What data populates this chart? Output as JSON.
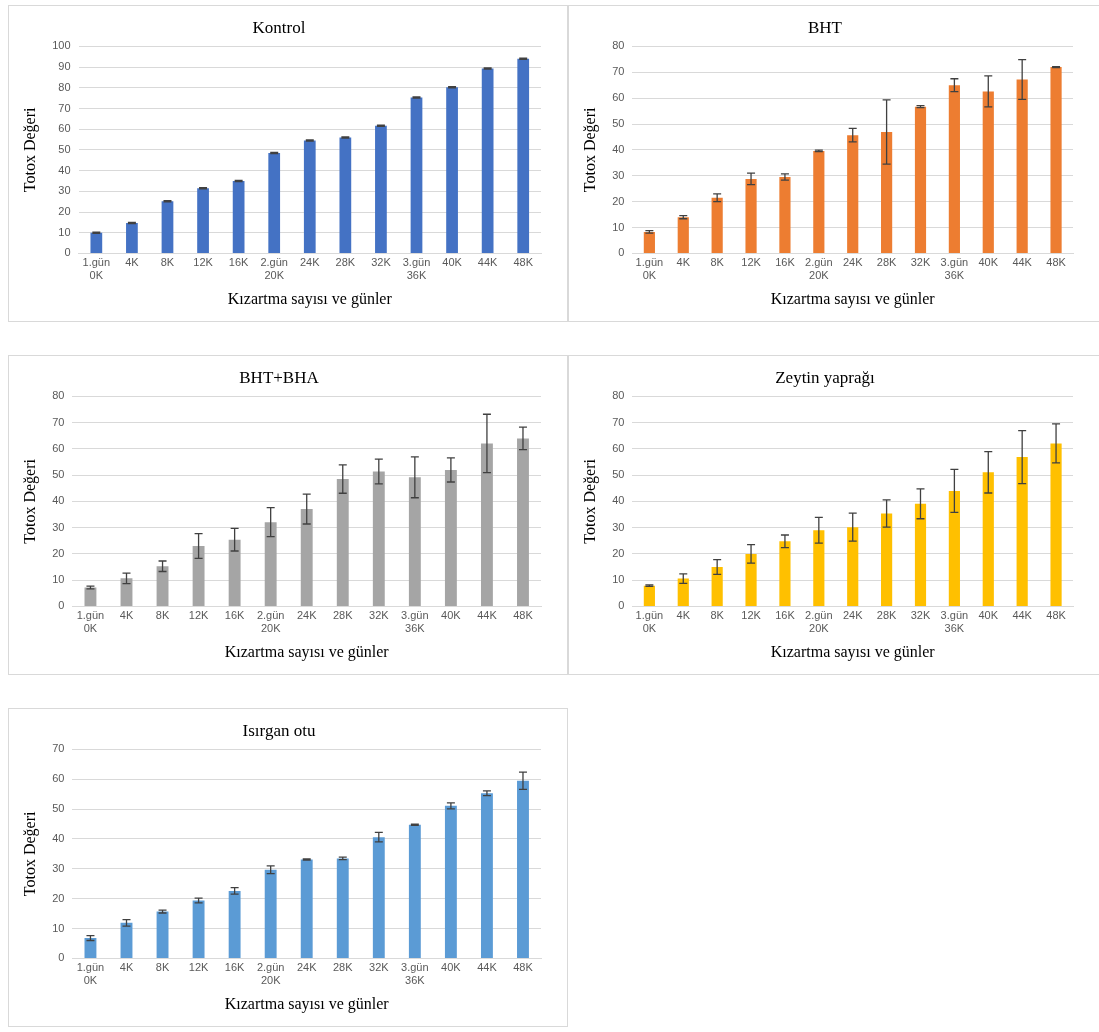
{
  "chart_data": [
    {
      "type": "bar",
      "title": "Kontrol",
      "xlabel": "Kızartma sayısı ve günler",
      "ylabel": "Totox Değeri",
      "categories": [
        "1.gün\n0K",
        "4K",
        "8K",
        "12K",
        "16K",
        "2.gün\n20K",
        "24K",
        "28K",
        "32K",
        "3.gün\n36K",
        "40K",
        "44K",
        "48K"
      ],
      "color": "#4472c4",
      "values": [
        10,
        14.7,
        25.2,
        31.5,
        35,
        48.5,
        54.5,
        56,
        61.7,
        75.3,
        80.3,
        89.3,
        94
      ],
      "errors": [
        0.3,
        0.3,
        0.3,
        0.3,
        0.3,
        0.3,
        0.3,
        0.3,
        0.3,
        0.3,
        0.3,
        0.3,
        0.3
      ],
      "ylim": [
        0,
        100
      ],
      "yticks": [
        0,
        10,
        20,
        30,
        40,
        50,
        60,
        70,
        80,
        90,
        100
      ],
      "grid": "y",
      "legend": false
    },
    {
      "type": "bar",
      "title": "BHT",
      "xlabel": "Kızartma sayısı ve günler",
      "ylabel": "Totox Değeri",
      "categories": [
        "1.gün\n0K",
        "4K",
        "8K",
        "12K",
        "16K",
        "2.gün\n20K",
        "24K",
        "28K",
        "32K",
        "3.gün\n36K",
        "40K",
        "44K",
        "48K"
      ],
      "color": "#ed7d31",
      "values": [
        8.3,
        14,
        21.5,
        28.8,
        29.5,
        39.6,
        45.7,
        46.9,
        56.7,
        65,
        62.6,
        67.2,
        72
      ],
      "errors": [
        0.5,
        0.6,
        1.5,
        2.2,
        1.2,
        0.3,
        2.6,
        12.4,
        0.4,
        2.5,
        6,
        7.7,
        0.2
      ],
      "ylim": [
        0,
        80
      ],
      "yticks": [
        0,
        10,
        20,
        30,
        40,
        50,
        60,
        70,
        80
      ],
      "grid": "y",
      "legend": false
    },
    {
      "type": "bar",
      "title": "BHT+BHA",
      "xlabel": "Kızartma sayısı ve günler",
      "ylabel": "Totox Değeri",
      "categories": [
        "1.gün\n0K",
        "4K",
        "8K",
        "12K",
        "16K",
        "2.gün\n20K",
        "24K",
        "28K",
        "32K",
        "3.gün\n36K",
        "40K",
        "44K",
        "48K"
      ],
      "color": "#a5a5a5",
      "values": [
        7.2,
        10.7,
        15.3,
        23,
        25.4,
        32.1,
        37.1,
        48.5,
        51.4,
        49.2,
        52,
        62.1,
        64
      ],
      "errors": [
        0.5,
        2,
        2,
        4.7,
        4.3,
        5.5,
        5.7,
        5.4,
        4.7,
        7.8,
        4.6,
        11.1,
        4.3
      ],
      "ylim": [
        0,
        80
      ],
      "yticks": [
        0,
        10,
        20,
        30,
        40,
        50,
        60,
        70,
        80
      ],
      "grid": "y",
      "legend": false
    },
    {
      "type": "bar",
      "title": "Zeytin yaprağı",
      "xlabel": "Kızartma sayısı ve günler",
      "ylabel": "Totox Değeri",
      "categories": [
        "1.gün\n0K",
        "4K",
        "8K",
        "12K",
        "16K",
        "2.gün\n20K",
        "24K",
        "28K",
        "32K",
        "3.gün\n36K",
        "40K",
        "44K",
        "48K"
      ],
      "color": "#ffc000",
      "values": [
        7.9,
        10.6,
        15,
        20,
        24.8,
        29,
        30.2,
        35.4,
        39.1,
        44,
        51.1,
        56.9,
        62.1
      ],
      "errors": [
        0.3,
        1.8,
        2.8,
        3.5,
        2.4,
        4.9,
        5.3,
        5.2,
        5.7,
        8.2,
        7.9,
        10.1,
        7.4
      ],
      "ylim": [
        0,
        80
      ],
      "yticks": [
        0,
        10,
        20,
        30,
        40,
        50,
        60,
        70,
        80
      ],
      "grid": "y",
      "legend": false
    },
    {
      "type": "bar",
      "title": "Isırgan otu",
      "xlabel": "Kızartma sayısı ve günler",
      "ylabel": "Totox Değeri",
      "categories": [
        "1.gün\n0K",
        "4K",
        "8K",
        "12K",
        "16K",
        "2.gün\n20K",
        "24K",
        "28K",
        "32K",
        "3.gün\n36K",
        "40K",
        "44K",
        "48K"
      ],
      "color": "#5b9bd5",
      "values": [
        6.8,
        11.9,
        15.7,
        19.4,
        22.6,
        29.7,
        33.1,
        33.5,
        40.6,
        44.8,
        51.1,
        55.3,
        59.5
      ],
      "errors": [
        0.8,
        1.1,
        0.5,
        0.8,
        1.1,
        1.3,
        0.2,
        0.4,
        1.6,
        0.2,
        1,
        0.8,
        2.9
      ],
      "ylim": [
        0,
        70
      ],
      "yticks": [
        0,
        10,
        20,
        30,
        40,
        50,
        60,
        70
      ],
      "grid": "y",
      "legend": false
    }
  ]
}
